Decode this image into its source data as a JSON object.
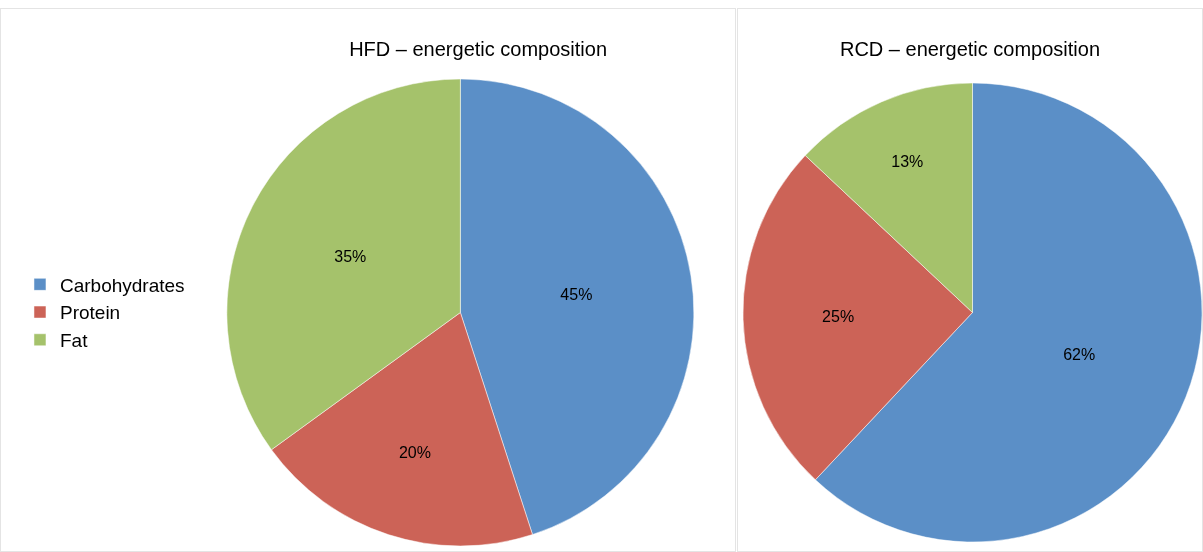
{
  "chart_data": [
    {
      "type": "pie",
      "title": "HFD – energetic composition",
      "categories": [
        "Carbohydrates",
        "Protein",
        "Fat"
      ],
      "values": [
        45,
        20,
        35
      ],
      "colors": [
        "#5b8fc7",
        "#cc6357",
        "#a5c26b"
      ],
      "value_labels": [
        "45%",
        "20%",
        "35%"
      ],
      "legend": "left"
    },
    {
      "type": "pie",
      "title": "RCD – energetic composition",
      "categories": [
        null,
        null,
        null
      ],
      "values": [
        62,
        25,
        13
      ],
      "colors": [
        "#5b8fc7",
        "#cc6357",
        "#a5c26b"
      ],
      "value_labels": [
        "62%",
        "25%",
        "13%"
      ],
      "legend": false
    }
  ]
}
